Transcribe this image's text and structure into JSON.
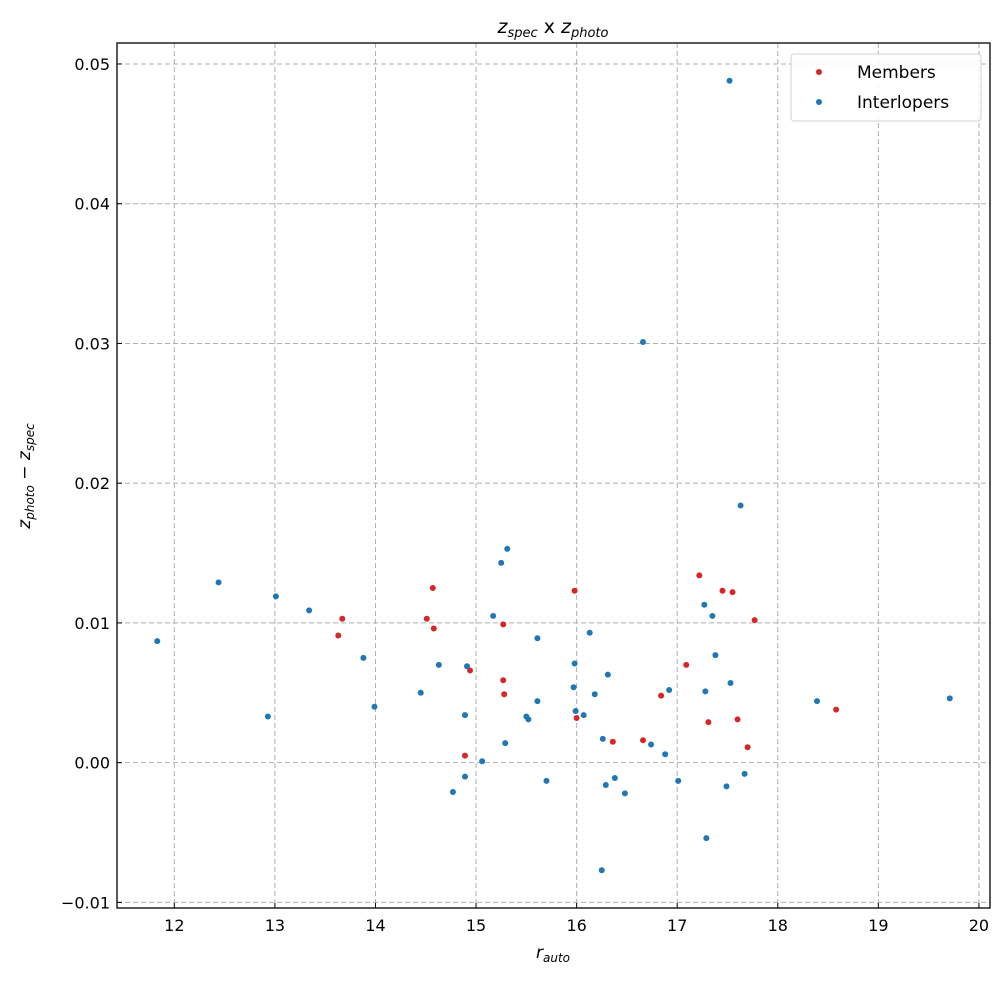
{
  "chart_data": {
    "type": "scatter",
    "title": {
      "a": "z",
      "a_sub": "spec",
      "mid": " x ",
      "b": "z",
      "b_sub": "photo"
    },
    "xlabel": {
      "base": "r",
      "sub": "auto"
    },
    "ylabel": {
      "a": "z",
      "a_sub": "photo",
      "op": " − ",
      "b": "z",
      "b_sub": "spec"
    },
    "xlim": [
      11.43,
      20.11
    ],
    "ylim": [
      -0.0104,
      0.0515
    ],
    "xticks": [
      12,
      13,
      14,
      15,
      16,
      17,
      18,
      19,
      20
    ],
    "xtick_labels": [
      "12",
      "13",
      "14",
      "15",
      "16",
      "17",
      "18",
      "19",
      "20"
    ],
    "yticks": [
      -0.01,
      0.0,
      0.01,
      0.02,
      0.03,
      0.04,
      0.05
    ],
    "ytick_labels": [
      "−0.01",
      "0.00",
      "0.01",
      "0.02",
      "0.03",
      "0.04",
      "0.05"
    ],
    "grid": true,
    "legend_position": "top-right",
    "series": [
      {
        "name": "Members",
        "color": "#d62728",
        "x": [
          13.67,
          13.63,
          14.57,
          14.51,
          14.58,
          14.89,
          14.94,
          15.27,
          15.27,
          15.28,
          15.98,
          16.0,
          16.36,
          16.66,
          16.84,
          17.09,
          17.22,
          17.31,
          17.45,
          17.55,
          17.6,
          17.7,
          17.77,
          18.58
        ],
        "y": [
          0.0103,
          0.0091,
          0.0125,
          0.0103,
          0.0096,
          0.0005,
          0.0066,
          0.0099,
          0.0059,
          0.0049,
          0.0123,
          0.0032,
          0.0015,
          0.0016,
          0.0048,
          0.007,
          0.0134,
          0.0029,
          0.0123,
          0.0122,
          0.0031,
          0.0011,
          0.0102,
          0.0038
        ]
      },
      {
        "name": "Interlopers",
        "color": "#1f77b4",
        "x": [
          11.83,
          12.44,
          12.93,
          13.01,
          13.34,
          13.88,
          13.99,
          14.45,
          14.63,
          14.77,
          14.89,
          14.89,
          14.91,
          15.06,
          15.31,
          15.25,
          15.17,
          15.29,
          15.5,
          15.52,
          15.61,
          15.61,
          15.7,
          15.97,
          15.98,
          15.99,
          16.07,
          16.13,
          16.18,
          16.26,
          16.29,
          16.31,
          16.38,
          16.48,
          16.25,
          16.66,
          16.74,
          16.88,
          16.92,
          17.01,
          17.27,
          17.28,
          17.29,
          17.35,
          17.38,
          17.49,
          17.53,
          17.52,
          17.63,
          17.67,
          18.39,
          19.71
        ],
        "y": [
          0.0087,
          0.0129,
          0.0033,
          0.0119,
          0.0109,
          0.0075,
          0.004,
          0.005,
          0.007,
          -0.0021,
          0.0034,
          -0.001,
          0.0069,
          0.0001,
          0.0153,
          0.0143,
          0.0105,
          0.0014,
          0.0033,
          0.0031,
          0.0089,
          0.0044,
          -0.0013,
          0.0054,
          0.0071,
          0.0037,
          0.0034,
          0.0093,
          0.0049,
          0.0017,
          -0.0016,
          0.0063,
          -0.0011,
          -0.0022,
          -0.0077,
          0.0301,
          0.0013,
          0.0006,
          0.0052,
          -0.0013,
          0.0113,
          0.0051,
          -0.0054,
          0.0105,
          0.0077,
          -0.0017,
          0.0057,
          0.0488,
          0.0184,
          -0.0008,
          0.0044,
          0.0046
        ]
      }
    ]
  }
}
